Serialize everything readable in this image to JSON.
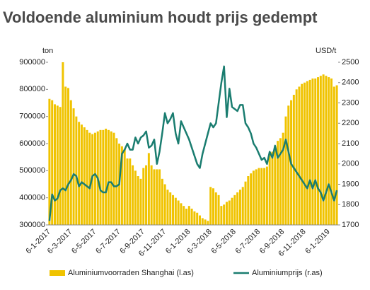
{
  "chart_data": {
    "type": "bar_line",
    "title": "Voldoende aluminium houdt prijs gedempt",
    "y_label": "ton",
    "y2_label": "USD/t",
    "categories": [
      "6-1-2017",
      null,
      null,
      null,
      null,
      null,
      null,
      null,
      "6-3-2017",
      null,
      null,
      null,
      null,
      null,
      null,
      null,
      null,
      "6-5-2017",
      null,
      null,
      null,
      null,
      null,
      null,
      null,
      null,
      "6-7-2017",
      null,
      null,
      null,
      null,
      null,
      null,
      null,
      null,
      "6-9-2017",
      null,
      null,
      null,
      null,
      null,
      null,
      null,
      "6-11-2017",
      null,
      null,
      null,
      null,
      null,
      null,
      null,
      null,
      "6-1-2018",
      null,
      null,
      null,
      null,
      null,
      null,
      null,
      "6-3-2018",
      null,
      null,
      null,
      null,
      null,
      null,
      null,
      null,
      "6-5-2018",
      null,
      null,
      null,
      null,
      null,
      null,
      null,
      null,
      "6-7-2018",
      null,
      null,
      null,
      null,
      null,
      null,
      null,
      null,
      "6-9-2018",
      null,
      null,
      null,
      null,
      null,
      null,
      null,
      "6-11-2018",
      null,
      null,
      null,
      null,
      null,
      null,
      null,
      null,
      "6-1-2019",
      null,
      null,
      null
    ],
    "series": [
      {
        "name": "Aluminiumvoorraden Shanghai (l.as)",
        "color": "#f0c300",
        "values": [
          765000,
          760000,
          745000,
          740000,
          735000,
          900000,
          810000,
          805000,
          760000,
          730000,
          700000,
          680000,
          670000,
          660000,
          650000,
          640000,
          635000,
          640000,
          645000,
          650000,
          650000,
          655000,
          650000,
          645000,
          640000,
          620000,
          600000,
          590000,
          580000,
          545000,
          545000,
          520000,
          500000,
          480000,
          470000,
          510000,
          520000,
          565000,
          520000,
          505000,
          505000,
          505000,
          470000,
          450000,
          430000,
          420000,
          410000,
          400000,
          390000,
          380000,
          370000,
          360000,
          370000,
          360000,
          350000,
          345000,
          335000,
          325000,
          320000,
          315000,
          440000,
          435000,
          420000,
          410000,
          370000,
          375000,
          385000,
          390000,
          400000,
          410000,
          420000,
          430000,
          440000,
          460000,
          480000,
          490000,
          500000,
          505000,
          510000,
          510000,
          510000,
          515000,
          560000,
          570000,
          590000,
          610000,
          620000,
          640000,
          700000,
          740000,
          760000,
          780000,
          800000,
          810000,
          820000,
          825000,
          830000,
          835000,
          840000,
          840000,
          845000,
          850000,
          855000,
          850000,
          845000,
          840000,
          810000,
          815000
        ]
      },
      {
        "name": "Aluminiumprijs (r.as)",
        "color": "#1a7d70",
        "axis": "y2",
        "values": [
          1720,
          1850,
          1820,
          1830,
          1870,
          1880,
          1870,
          1900,
          1920,
          1950,
          1940,
          1890,
          1910,
          1900,
          1890,
          1880,
          1940,
          1950,
          1930,
          1870,
          1860,
          1860,
          1910,
          1910,
          1890,
          1890,
          1900,
          2050,
          2070,
          2100,
          2070,
          2070,
          2130,
          2100,
          2130,
          2140,
          2160,
          2080,
          2090,
          2120,
          2000,
          2060,
          2150,
          2250,
          2200,
          2220,
          2250,
          2150,
          2100,
          2210,
          2180,
          2150,
          2120,
          2080,
          2040,
          2000,
          1980,
          2050,
          2100,
          2150,
          2200,
          2180,
          2200,
          2300,
          2400,
          2480,
          2230,
          2370,
          2280,
          2270,
          2260,
          2290,
          2290,
          2200,
          2180,
          2150,
          2100,
          2080,
          2050,
          2020,
          2030,
          2000,
          2060,
          2030,
          2090,
          2030,
          2050,
          2070,
          2120,
          2060,
          2000,
          1980,
          1960,
          1940,
          1920,
          1900,
          1880,
          1920,
          1880,
          1920,
          1880,
          1860,
          1820,
          1860,
          1900,
          1860,
          1820,
          1870
        ]
      }
    ],
    "ylim": [
      300000,
      900000
    ],
    "yticks": [
      300000,
      400000,
      500000,
      600000,
      700000,
      800000,
      900000
    ],
    "y2lim": [
      1700,
      2500
    ],
    "y2ticks": [
      1700,
      1800,
      1900,
      2000,
      2100,
      2200,
      2300,
      2400,
      2500
    ],
    "legend": "bottom"
  }
}
